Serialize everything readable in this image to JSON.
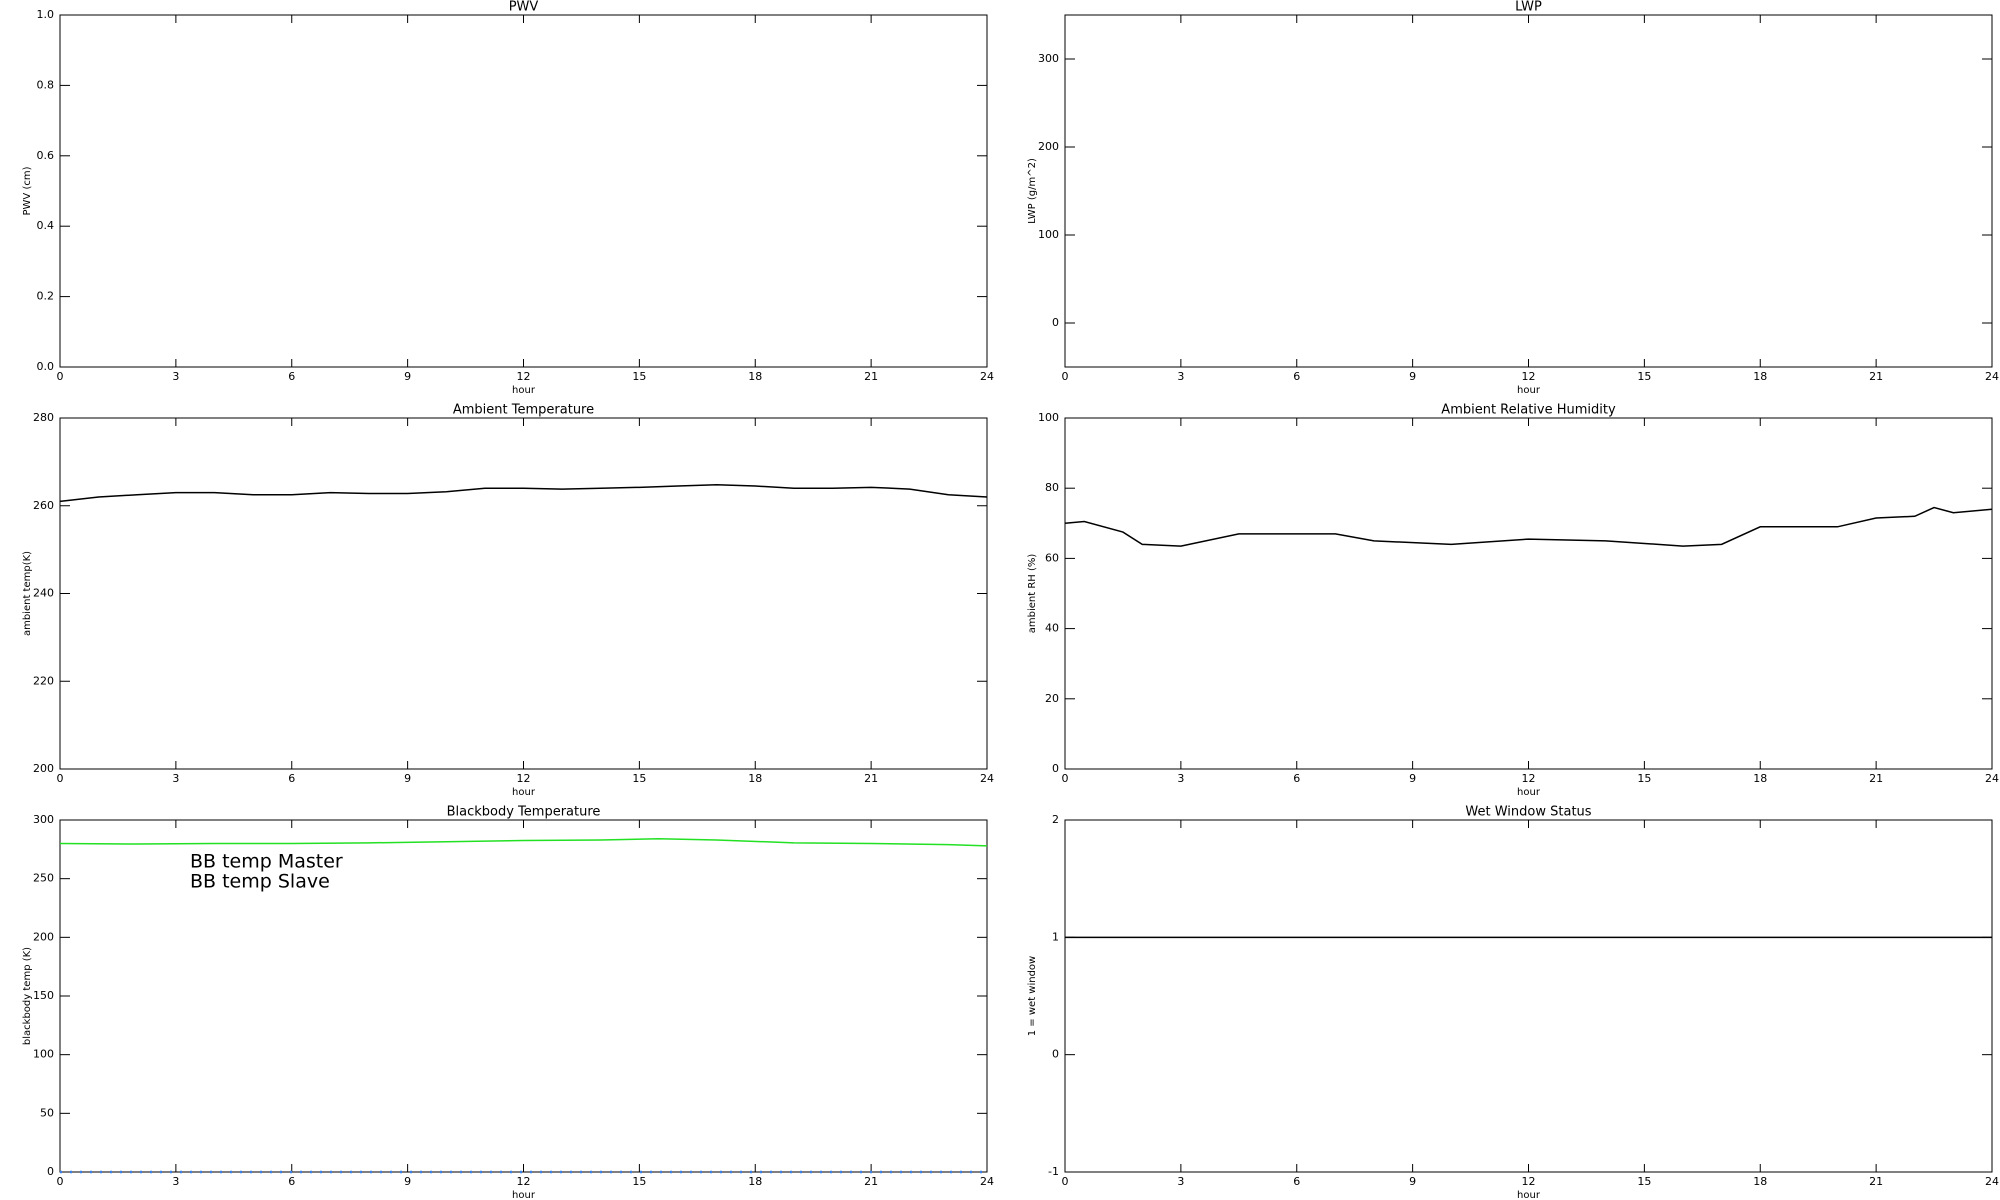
{
  "chart_data": [
    {
      "type": "line",
      "title": "PWV",
      "xlabel": "hour",
      "ylabel": "PWV (cm)",
      "xlim": [
        0,
        24
      ],
      "xticks": [
        0,
        3,
        6,
        9,
        12,
        15,
        18,
        21,
        24
      ],
      "ylim": [
        0,
        1
      ],
      "yticks": [
        {
          "value": 0,
          "label": "0.0"
        },
        0.2,
        0.4,
        0.6,
        0.8,
        {
          "value": 1,
          "label": "1.0"
        }
      ],
      "series": []
    },
    {
      "type": "line",
      "title": "LWP",
      "xlabel": "hour",
      "ylabel": "LWP (g/m^2)",
      "xlim": [
        0,
        24
      ],
      "xticks": [
        0,
        3,
        6,
        9,
        12,
        15,
        18,
        21,
        24
      ],
      "ylim": [
        -50,
        350
      ],
      "yticks": [
        0,
        100,
        200,
        300
      ],
      "series": []
    },
    {
      "type": "line",
      "title": "Ambient Temperature",
      "xlabel": "hour",
      "ylabel": "ambient temp(K)",
      "xlim": [
        0,
        24
      ],
      "xticks": [
        0,
        3,
        6,
        9,
        12,
        15,
        18,
        21,
        24
      ],
      "ylim": [
        200,
        280
      ],
      "yticks": [
        200,
        220,
        240,
        260,
        280
      ],
      "series": [
        {
          "color": "#000000",
          "x": [
            0,
            1,
            2,
            3,
            4,
            5,
            6,
            7,
            8,
            9,
            10,
            11,
            12,
            13,
            14,
            15,
            16,
            17,
            18,
            19,
            20,
            21,
            22,
            23,
            24
          ],
          "values": [
            261,
            262,
            262.5,
            263,
            263,
            262.5,
            262.5,
            263,
            262.8,
            262.8,
            263.2,
            264,
            264,
            263.8,
            264,
            264.2,
            264.5,
            264.8,
            264.5,
            264,
            264,
            264.2,
            263.8,
            262.5,
            262
          ]
        }
      ]
    },
    {
      "type": "line",
      "title": "Ambient Relative Humidity",
      "xlabel": "hour",
      "ylabel": "ambient RH (%)",
      "xlim": [
        0,
        24
      ],
      "xticks": [
        0,
        3,
        6,
        9,
        12,
        15,
        18,
        21,
        24
      ],
      "ylim": [
        0,
        100
      ],
      "yticks": [
        0,
        20,
        40,
        60,
        80,
        100
      ],
      "series": [
        {
          "color": "#000000",
          "x": [
            0,
            0.5,
            1.5,
            2,
            3,
            4.5,
            7,
            8,
            10,
            12,
            14,
            16,
            17,
            18,
            20,
            21,
            22,
            22.5,
            23,
            24
          ],
          "values": [
            70,
            70.5,
            67.5,
            64,
            63.5,
            67,
            67,
            65,
            64,
            65.5,
            65,
            63.5,
            64,
            69,
            69,
            71.5,
            72,
            74.5,
            73,
            74
          ]
        }
      ]
    },
    {
      "type": "line",
      "title": "Blackbody Temperature",
      "xlabel": "hour",
      "ylabel": "blackbody temp (K)",
      "xlim": [
        0,
        24
      ],
      "xticks": [
        0,
        3,
        6,
        9,
        12,
        15,
        18,
        21,
        24
      ],
      "ylim": [
        0,
        300
      ],
      "yticks": [
        0,
        50,
        100,
        150,
        200,
        250,
        300
      ],
      "legend": "upper left",
      "series": [
        {
          "name": "BB temp Master",
          "color": "#3a7fe8",
          "dashed": true,
          "x": [
            0,
            24
          ],
          "values": [
            0,
            0
          ]
        },
        {
          "name": "BB temp Slave",
          "color": "#22e022",
          "x": [
            0,
            2,
            4,
            6,
            8,
            10,
            12,
            14,
            15.5,
            17,
            19,
            21,
            23,
            24
          ],
          "values": [
            280,
            279.5,
            280,
            280,
            280.5,
            281.5,
            282.5,
            283,
            284,
            283,
            280.5,
            280,
            279,
            278
          ]
        }
      ]
    },
    {
      "type": "line",
      "title": "Wet Window Status",
      "xlabel": "hour",
      "ylabel": "1 = wet window",
      "xlim": [
        0,
        24
      ],
      "xticks": [
        0,
        3,
        6,
        9,
        12,
        15,
        18,
        21,
        24
      ],
      "ylim": [
        -1,
        2
      ],
      "yticks": [
        -1,
        0,
        1,
        2
      ],
      "series": [
        {
          "color": "#000000",
          "x": [
            0,
            24
          ],
          "values": [
            1,
            1
          ]
        }
      ]
    }
  ]
}
